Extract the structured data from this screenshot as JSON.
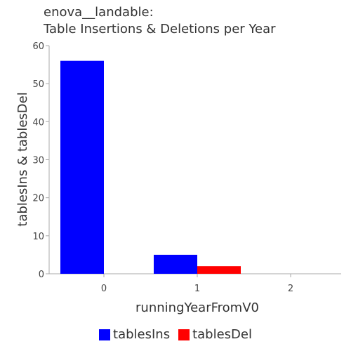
{
  "chart_data": {
    "type": "bar",
    "title_lines": [
      "enova__landable:",
      "Table Insertions & Deletions per Year"
    ],
    "xlabel": "runningYearFromV0",
    "ylabel": "tablesIns & tablesDel",
    "categories": [
      "0",
      "1",
      "2"
    ],
    "series": [
      {
        "name": "tablesIns",
        "color": "#0000ff",
        "values": [
          56,
          5,
          0
        ]
      },
      {
        "name": "tablesDel",
        "color": "#ff0000",
        "values": [
          0,
          2,
          0
        ]
      }
    ],
    "ylim": [
      0,
      60
    ],
    "yticks": [
      0,
      10,
      20,
      30,
      40,
      50,
      60
    ],
    "grid": false,
    "legend_position": "bottom"
  }
}
